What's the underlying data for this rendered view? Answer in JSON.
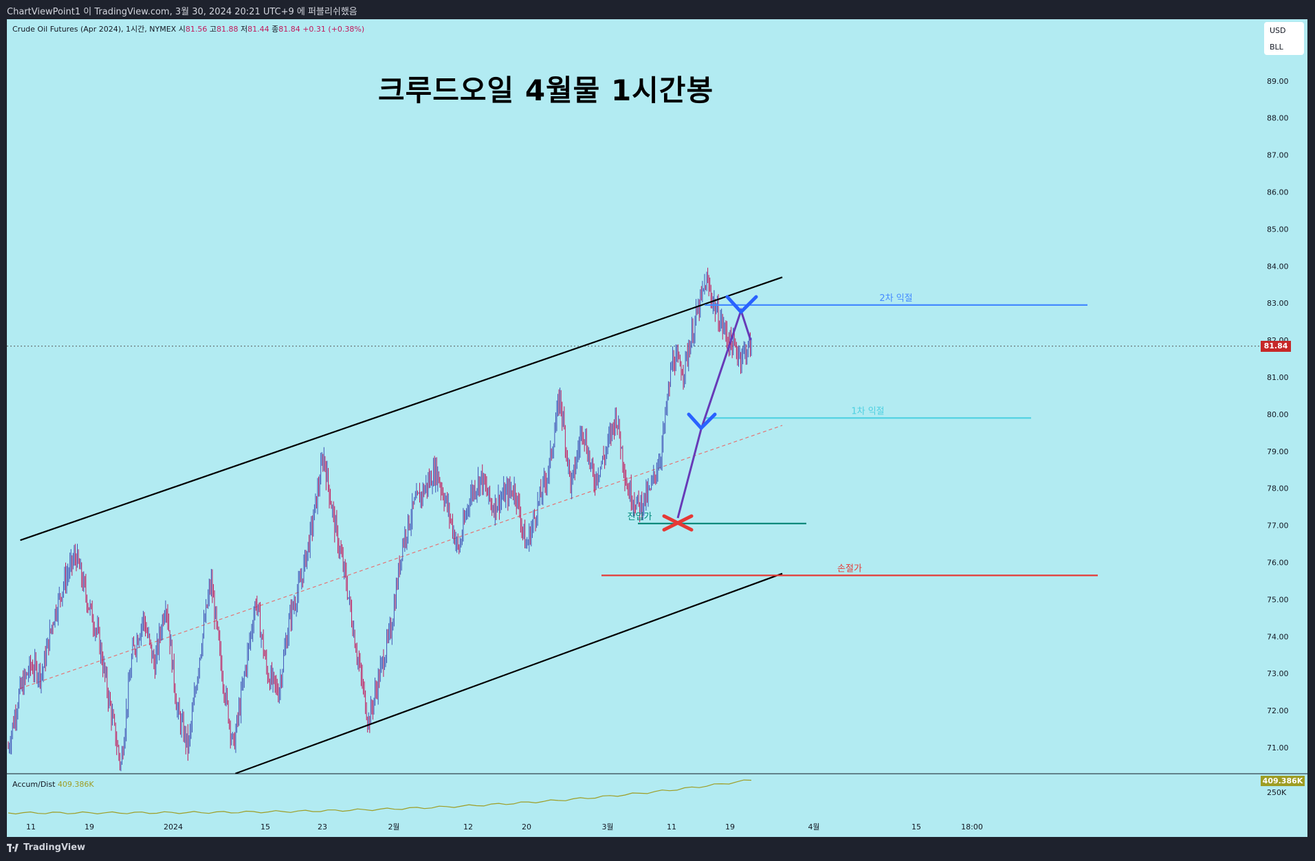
{
  "header": {
    "attribution": "ChartViewPoint1 이 TradingView.com, 3월 30, 2024 20:21 UTC+9 에 퍼블리쉬했음"
  },
  "legend": {
    "symbol": "Crude Oil Futures (Apr 2024), 1시간, NYMEX",
    "open_label": "시",
    "open": "81.56",
    "high_label": "고",
    "high": "81.88",
    "low_label": "저",
    "low": "81.44",
    "close_label": "종",
    "close": "81.84",
    "change": "+0.31 (+0.38%)"
  },
  "headline": "크루드오일 4월물 1시간봉",
  "units": {
    "currency": "USD",
    "unit": "BLL"
  },
  "last_price_tag": "81.84",
  "indicator": {
    "name": "Accum/Dist",
    "value": "409.386K",
    "tag": "409.386K",
    "axis_label": "250K"
  },
  "footer": {
    "brand": "TradingView"
  },
  "colors": {
    "background": "#b2ebf2",
    "candle_up": "#3f51b5",
    "candle_down": "#c2185b",
    "channel": "#000000",
    "target1": "#4dd0e1",
    "target2": "#448aff",
    "entry": "#00897b",
    "stop": "#e53935",
    "ad_line": "#9e9d24",
    "path": "#673ab7"
  },
  "chart_data": {
    "type": "candlestick",
    "yaxis": {
      "ticks": [
        "71.00",
        "72.00",
        "73.00",
        "74.00",
        "75.00",
        "76.00",
        "77.00",
        "78.00",
        "79.00",
        "80.00",
        "81.00",
        "82.00",
        "83.00",
        "84.00",
        "85.00",
        "86.00",
        "87.00",
        "88.00",
        "89.00"
      ],
      "ylim": [
        70.3,
        90.5
      ]
    },
    "xaxis": {
      "ticks": [
        "11",
        "19",
        "2024",
        "15",
        "23",
        "2월",
        "12",
        "20",
        "3월",
        "11",
        "19",
        "4월",
        "15",
        "18:00"
      ]
    },
    "price_path": [
      71.0,
      72.5,
      73.2,
      73.0,
      74.5,
      75.5,
      76.2,
      75.0,
      74.0,
      72.2,
      70.5,
      73.5,
      74.5,
      73.2,
      75.0,
      72.0,
      71.0,
      73.5,
      75.5,
      73.0,
      71.0,
      73.0,
      75.0,
      73.0,
      72.5,
      74.5,
      75.5,
      77.0,
      78.9,
      77.0,
      75.5,
      73.5,
      71.7,
      73.0,
      74.2,
      76.5,
      77.5,
      78.0,
      78.5,
      77.5,
      76.3,
      77.8,
      78.3,
      77.5,
      77.8,
      78.0,
      76.4,
      77.5,
      78.5,
      80.5,
      78.0,
      79.7,
      78.2,
      78.9,
      80.0,
      78.0,
      77.5,
      77.9,
      79.0,
      81.5,
      81.2,
      82.5,
      83.6,
      82.7,
      82.0,
      81.6,
      81.84
    ],
    "channel_upper": {
      "from": [
        "2023-12-07",
        76.6
      ],
      "to": [
        "2024-04-09",
        83.7
      ]
    },
    "channel_lower": {
      "from": [
        "2024-01-11",
        70.3
      ],
      "to": [
        "2024-04-09",
        75.7
      ]
    },
    "midline": {
      "from": [
        "2023-12-07",
        72.6
      ],
      "to": [
        "2024-04-09",
        79.7
      ]
    },
    "levels": [
      {
        "label": "2차 익절",
        "price": 82.95,
        "color": "#448aff"
      },
      {
        "label": "1차 익절",
        "price": 79.9,
        "color": "#4dd0e1"
      },
      {
        "label": "진입가",
        "price": 77.05,
        "color": "#00897b"
      },
      {
        "label": "손절가",
        "price": 75.65,
        "color": "#e53935"
      }
    ],
    "last_price": 81.84,
    "accum_dist": {
      "last": "409.386K",
      "axis": [
        "250K"
      ]
    }
  }
}
